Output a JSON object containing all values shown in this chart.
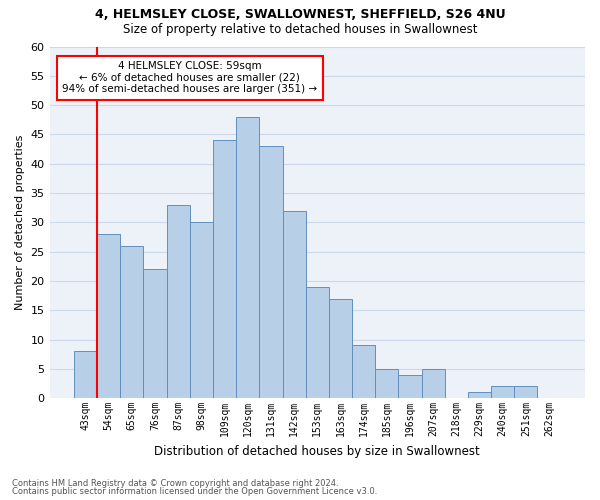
{
  "title1": "4, HELMSLEY CLOSE, SWALLOWNEST, SHEFFIELD, S26 4NU",
  "title2": "Size of property relative to detached houses in Swallownest",
  "xlabel": "Distribution of detached houses by size in Swallownest",
  "ylabel": "Number of detached properties",
  "bar_labels": [
    "43sqm",
    "54sqm",
    "65sqm",
    "76sqm",
    "87sqm",
    "98sqm",
    "109sqm",
    "120sqm",
    "131sqm",
    "142sqm",
    "153sqm",
    "163sqm",
    "174sqm",
    "185sqm",
    "196sqm",
    "207sqm",
    "218sqm",
    "229sqm",
    "240sqm",
    "251sqm",
    "262sqm"
  ],
  "bar_values": [
    8,
    28,
    26,
    22,
    33,
    30,
    44,
    48,
    43,
    32,
    19,
    17,
    9,
    5,
    4,
    5,
    0,
    1,
    2,
    2,
    0
  ],
  "bar_color": "#b8cfe8",
  "bar_edge_color": "#6090c0",
  "vline_color": "red",
  "vline_x_index": 1,
  "annotation_text": "4 HELMSLEY CLOSE: 59sqm\n← 6% of detached houses are smaller (22)\n94% of semi-detached houses are larger (351) →",
  "annotation_box_color": "white",
  "annotation_box_edge": "red",
  "ylim": [
    0,
    60
  ],
  "yticks": [
    0,
    5,
    10,
    15,
    20,
    25,
    30,
    35,
    40,
    45,
    50,
    55,
    60
  ],
  "footer1": "Contains HM Land Registry data © Crown copyright and database right 2024.",
  "footer2": "Contains public sector information licensed under the Open Government Licence v3.0.",
  "grid_color": "#ccd8ea",
  "bg_color": "#edf2f9",
  "title1_fontsize": 9,
  "title2_fontsize": 8.5,
  "xlabel_fontsize": 8.5,
  "ylabel_fontsize": 8,
  "ytick_fontsize": 8,
  "xtick_fontsize": 7
}
